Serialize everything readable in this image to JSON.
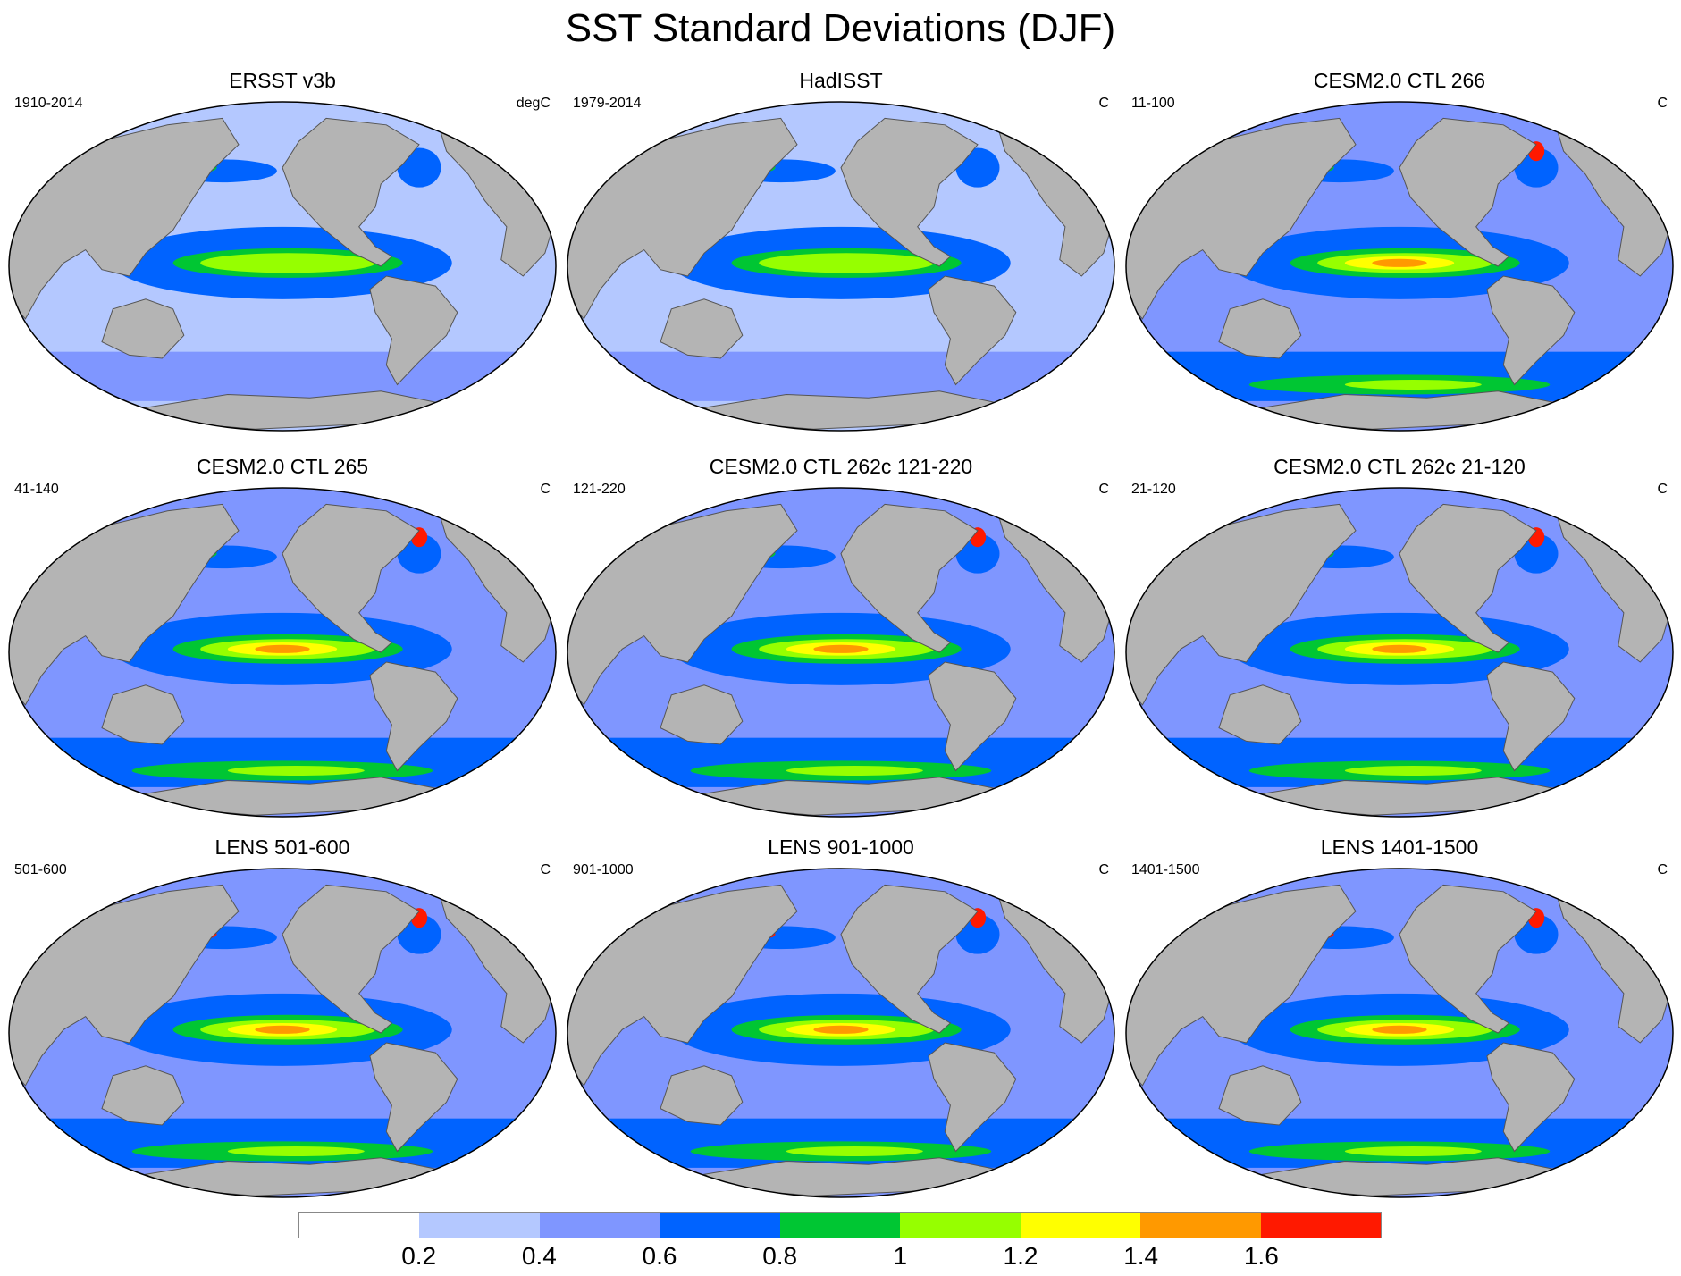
{
  "title": "SST Standard Deviations (DJF)",
  "panels": [
    {
      "title": "ERSST v3b",
      "left": "1910-2014",
      "right": "degC",
      "ocean_hint": "obs1"
    },
    {
      "title": "HadISST",
      "left": "1979-2014",
      "right": "C",
      "ocean_hint": "obs2"
    },
    {
      "title": "CESM2.0 CTL 266",
      "left": "11-100",
      "right": "C",
      "ocean_hint": "model"
    },
    {
      "title": "CESM2.0 CTL 265",
      "left": "41-140",
      "right": "C",
      "ocean_hint": "model"
    },
    {
      "title": "CESM2.0 CTL 262c 121-220",
      "left": "121-220",
      "right": "C",
      "ocean_hint": "model"
    },
    {
      "title": "CESM2.0 CTL 262c 21-120",
      "left": "21-120",
      "right": "C",
      "ocean_hint": "model"
    },
    {
      "title": "LENS 501-600",
      "left": "501-600",
      "right": "C",
      "ocean_hint": "lens"
    },
    {
      "title": "LENS 901-1000",
      "left": "901-1000",
      "right": "C",
      "ocean_hint": "lens"
    },
    {
      "title": "LENS 1401-1500",
      "left": "1401-1500",
      "right": "C",
      "ocean_hint": "lens"
    }
  ],
  "colorbar": {
    "colors": [
      "#ffffff",
      "#b4c8ff",
      "#7f96ff",
      "#0063ff",
      "#00c633",
      "#96ff00",
      "#ffff00",
      "#ff9900",
      "#ff1900"
    ],
    "labels": [
      "0.2",
      "0.4",
      "0.6",
      "0.8",
      "1",
      "1.2",
      "1.4",
      "1.6"
    ]
  },
  "colors": {
    "land": "#b4b4b4",
    "coast": "#555555"
  }
}
